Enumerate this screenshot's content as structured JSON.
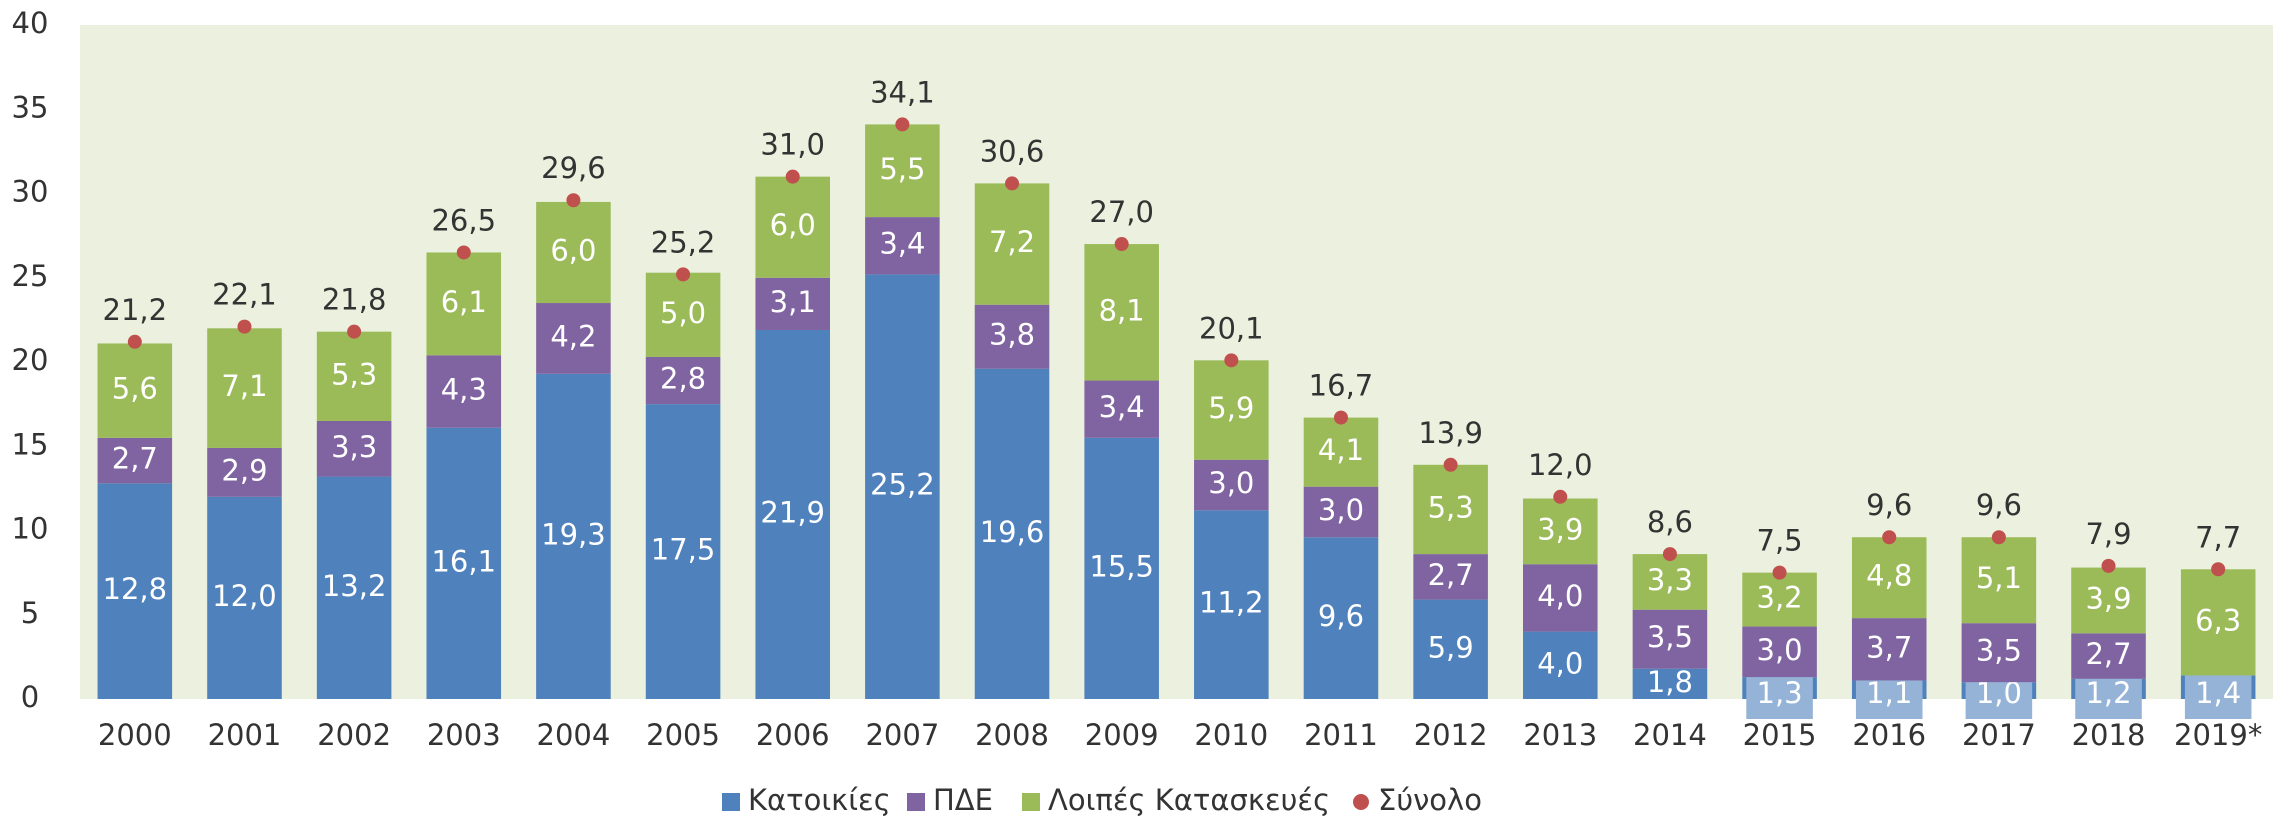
{
  "chart_data": {
    "type": "stacked_bar",
    "categories": [
      "2000",
      "2001",
      "2002",
      "2003",
      "2004",
      "2005",
      "2006",
      "2007",
      "2008",
      "2009",
      "2010",
      "2011",
      "2012",
      "2013",
      "2014",
      "2015",
      "2016",
      "2017",
      "2018",
      "2019*"
    ],
    "ylim": [
      0,
      40
    ],
    "yticks": [
      0,
      5,
      10,
      15,
      20,
      25,
      30,
      35,
      40
    ],
    "series": [
      {
        "name": "Κατοικίες",
        "color": "#4f81bd",
        "values": [
          12.8,
          12.0,
          13.2,
          16.1,
          19.3,
          17.5,
          21.9,
          25.2,
          19.6,
          15.5,
          11.2,
          9.6,
          5.9,
          4.0,
          1.8,
          1.3,
          1.1,
          1.0,
          1.2,
          1.4
        ],
        "value_labels": [
          "12,8",
          "12,0",
          "13,2",
          "16,1",
          "19,3",
          "17,5",
          "21,9",
          "25,2",
          "19,6",
          "15,5",
          "11,2",
          "9,6",
          "5,9",
          "4,0",
          "1,8",
          "1,3",
          "1,1",
          "1,0",
          "1,2",
          "1,4"
        ]
      },
      {
        "name": "ΠΔΕ",
        "color": "#8064a2",
        "values": [
          2.7,
          2.9,
          3.3,
          4.3,
          4.2,
          2.8,
          3.1,
          3.4,
          3.8,
          3.4,
          3.0,
          3.0,
          2.7,
          4.0,
          3.5,
          3.0,
          3.7,
          3.5,
          2.7,
          null
        ],
        "value_labels": [
          "2,7",
          "2,9",
          "3,3",
          "4,3",
          "4,2",
          "2,8",
          "3,1",
          "3,4",
          "3,8",
          "3,4",
          "3,0",
          "3,0",
          "2,7",
          "4,0",
          "3,5",
          "3,0",
          "3,7",
          "3,5",
          "2,7",
          null
        ]
      },
      {
        "name": "Λοιπές Κατασκευές",
        "color": "#9bbb59",
        "values": [
          5.6,
          7.1,
          5.3,
          6.1,
          6.0,
          5.0,
          6.0,
          5.5,
          7.2,
          8.1,
          5.9,
          4.1,
          5.3,
          3.9,
          3.3,
          3.2,
          4.8,
          5.1,
          3.9,
          6.3
        ],
        "value_labels": [
          "5,6",
          "7,1",
          "5,3",
          "6,1",
          "6,0",
          "5,0",
          "6,0",
          "5,5",
          "7,2",
          "8,1",
          "5,9",
          "4,1",
          "5,3",
          "3,9",
          "3,3",
          "3,2",
          "4,8",
          "5,1",
          "3,9",
          "6,3"
        ]
      },
      {
        "name": "Σύνολο",
        "color": "#c0504d",
        "type": "dot",
        "values": [
          21.2,
          22.1,
          21.8,
          26.5,
          29.6,
          25.2,
          31.0,
          34.1,
          30.6,
          27.0,
          20.1,
          16.7,
          13.9,
          12.0,
          8.6,
          7.5,
          9.6,
          9.6,
          7.9,
          7.7
        ],
        "value_labels": [
          "21,2",
          "22,1",
          "21,8",
          "26,5",
          "29,6",
          "25,2",
          "31,0",
          "34,1",
          "30,6",
          "27,0",
          "20,1",
          "16,7",
          "13,9",
          "12,0",
          "8,6",
          "7,5",
          "9,6",
          "9,6",
          "7,9",
          "7,7"
        ]
      }
    ],
    "legend": "bottom"
  }
}
